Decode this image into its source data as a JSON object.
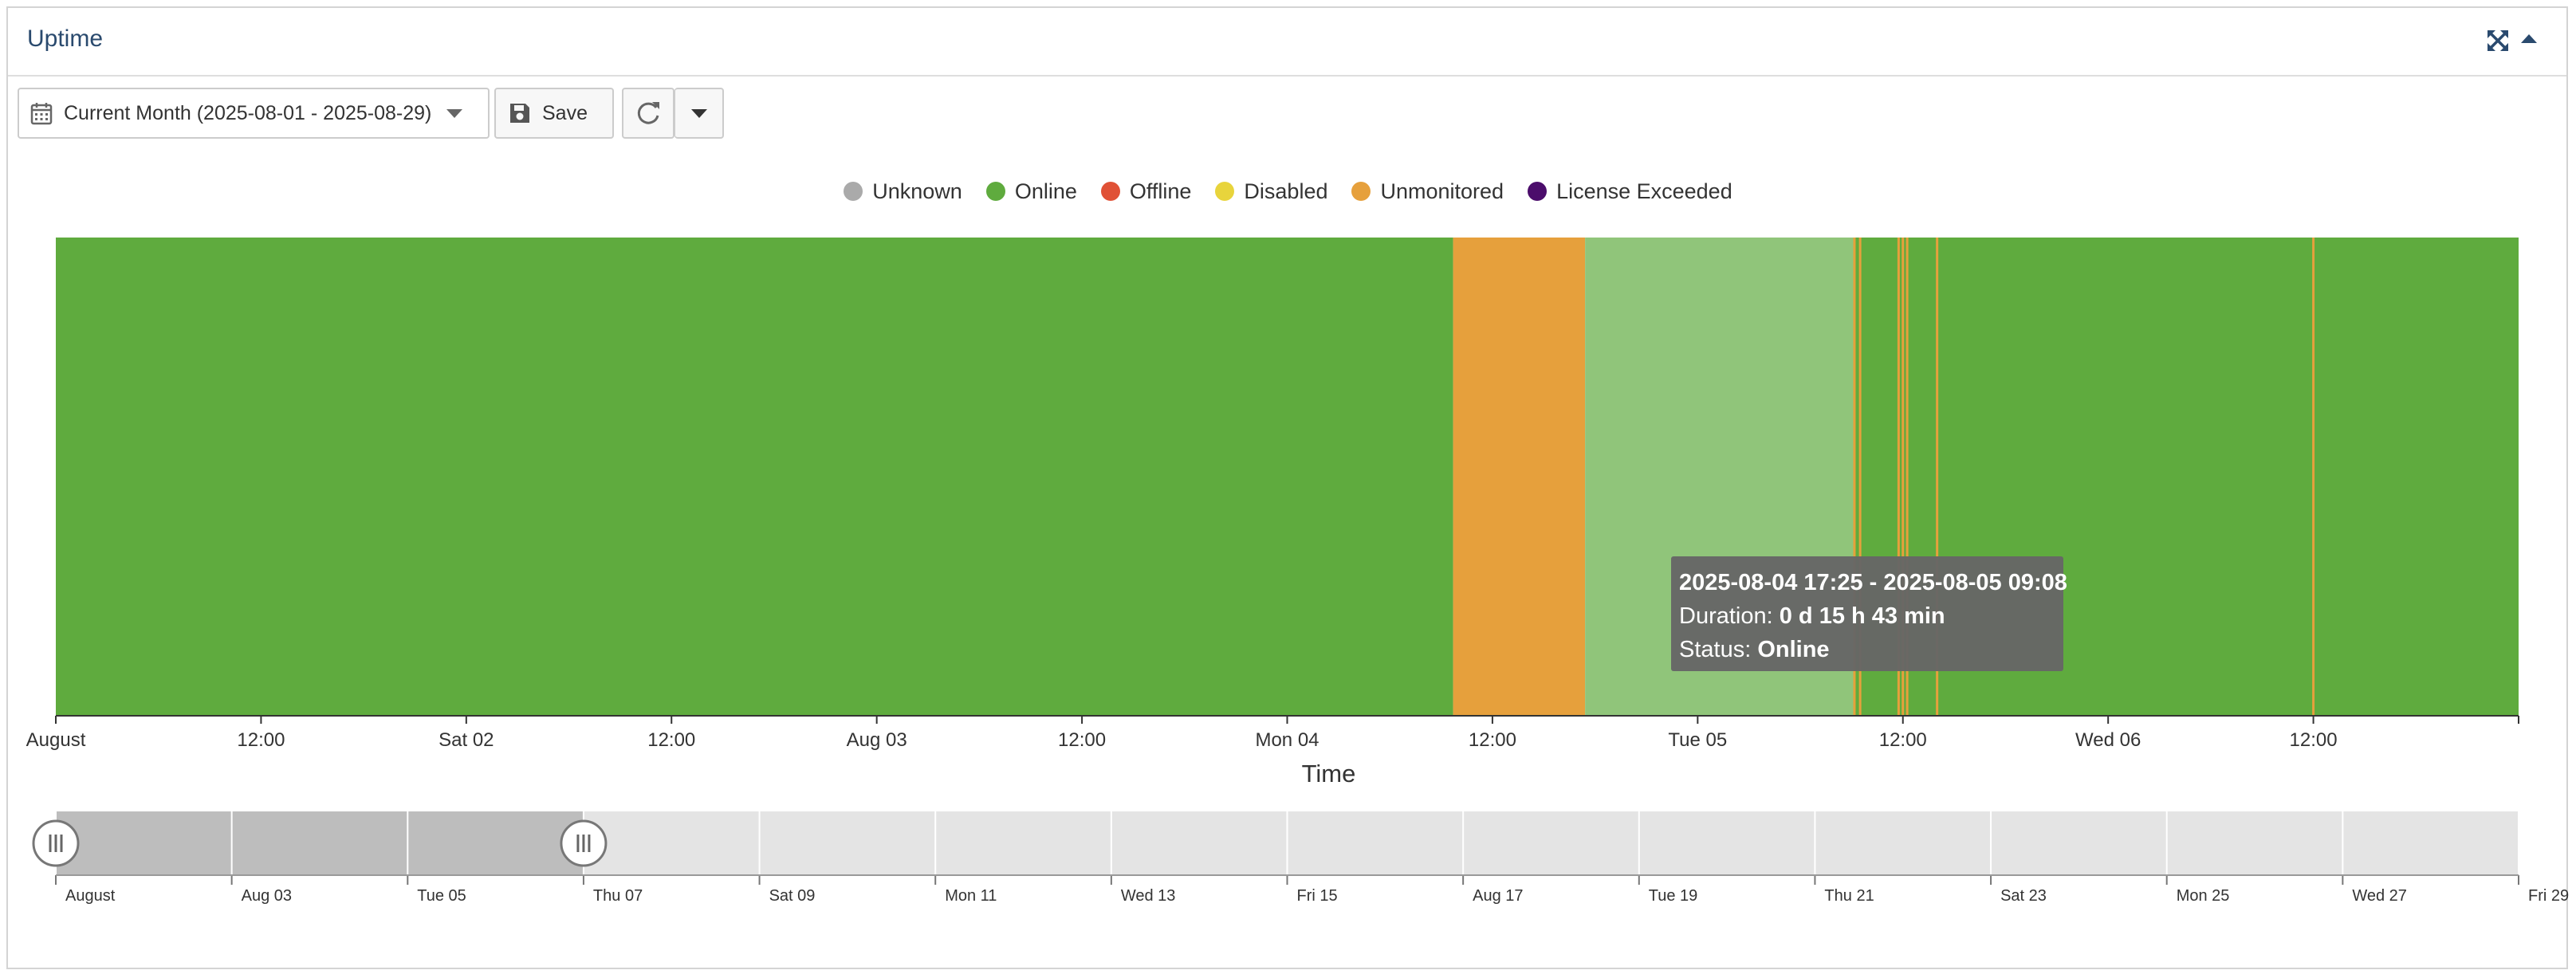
{
  "panel": {
    "title": "Uptime",
    "expand_icon": "expand-arrows-icon",
    "collapse_icon": "caret-up-icon"
  },
  "toolbar": {
    "range_label": "Current Month (2025-08-01 - 2025-08-29)",
    "save_label": "Save",
    "icons": [
      "calendar-icon",
      "chevron-down-icon",
      "save-icon",
      "refresh-icon",
      "caret-down-icon"
    ]
  },
  "tooltip": {
    "range": "2025-08-04 17:25 - 2025-08-05 09:08",
    "duration_label": "Duration: ",
    "duration_value": "0 d 15 h 43 min",
    "status_label": "Status: ",
    "status_value": "Online"
  },
  "chart_data": {
    "type": "bar",
    "title": "",
    "xlabel": "Time",
    "ylabel": "",
    "xlim": [
      "2025-08-01 00:00",
      "2025-08-07 00:00"
    ],
    "legend_position": "top-center",
    "legend": [
      {
        "name": "Unknown",
        "color": "#aaaaaa"
      },
      {
        "name": "Online",
        "color": "#5fab3e"
      },
      {
        "name": "Offline",
        "color": "#e05136"
      },
      {
        "name": "Disabled",
        "color": "#e8d43c"
      },
      {
        "name": "Unmonitored",
        "color": "#e6a03c"
      },
      {
        "name": "License Exceeded",
        "color": "#4b0d6b"
      }
    ],
    "segments": [
      {
        "start": "2025-08-01 00:00",
        "end": "2025-08-04 09:42",
        "status": "Online"
      },
      {
        "start": "2025-08-04 09:42",
        "end": "2025-08-04 17:25",
        "status": "Unmonitored"
      },
      {
        "start": "2025-08-04 17:25",
        "end": "2025-08-05 09:08",
        "status": "Online",
        "highlighted": true
      },
      {
        "start": "2025-08-05 09:08",
        "end": "2025-08-07 00:00",
        "status": "Online"
      }
    ],
    "brief_unmonitored": [
      "2025-08-05 09:10",
      "2025-08-05 09:30",
      "2025-08-05 11:45",
      "2025-08-05 12:00",
      "2025-08-05 12:15",
      "2025-08-05 14:00",
      "2025-08-06 12:00"
    ],
    "x_ticks": [
      "August",
      "12:00",
      "Sat 02",
      "12:00",
      "Aug 03",
      "12:00",
      "Mon 04",
      "12:00",
      "Tue 05",
      "12:00",
      "Wed 06",
      "12:00"
    ],
    "navigator": {
      "range": [
        "2025-08-01",
        "2025-08-29"
      ],
      "selected": [
        "2025-08-01",
        "2025-08-07"
      ],
      "ticks": [
        "August",
        "Aug 03",
        "Tue 05",
        "Thu 07",
        "Sat 09",
        "Mon 11",
        "Wed 13",
        "Fri 15",
        "Aug 17",
        "Tue 19",
        "Thu 21",
        "Sat 23",
        "Mon 25",
        "Wed 27",
        "Fri 29"
      ]
    }
  }
}
